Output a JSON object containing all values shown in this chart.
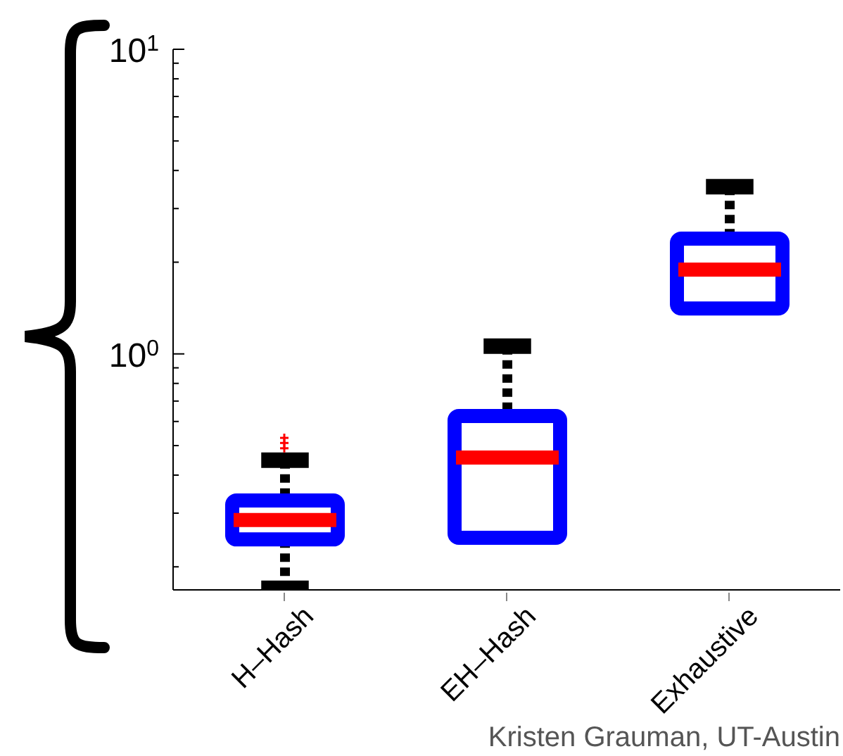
{
  "chart_data": {
    "type": "box",
    "categories": [
      "H–Hash",
      "EH–Hash",
      "Exhaustive"
    ],
    "color": "#0000ff",
    "boxes": [
      {
        "low": 0.17,
        "q1": 0.246,
        "median": 0.285,
        "q3": 0.33,
        "high": 0.448,
        "outliers": [
          0.49,
          0.51,
          0.53
        ]
      },
      {
        "low": 0.249,
        "q1": 0.249,
        "median": 0.457,
        "q3": 0.625,
        "high": 1.06
      },
      {
        "low": 1.41,
        "q1": 1.41,
        "median": 1.89,
        "q3": 2.39,
        "high": 3.54
      }
    ],
    "log": "y",
    "ylim": [
      0.168,
      10
    ],
    "yticks": [
      {
        "value": 0.2,
        "label": null
      },
      {
        "value": 0.3,
        "label": null
      },
      {
        "value": 0.4,
        "label": null
      },
      {
        "value": 0.5,
        "label": null
      },
      {
        "value": 0.6,
        "label": null
      },
      {
        "value": 0.7,
        "label": null
      },
      {
        "value": 0.8,
        "label": null
      },
      {
        "value": 0.9,
        "label": null
      },
      {
        "value": 1,
        "label": "10$^{0}$"
      },
      {
        "value": 2,
        "label": null
      },
      {
        "value": 3,
        "label": null
      },
      {
        "value": 4,
        "label": null
      },
      {
        "value": 5,
        "label": null
      },
      {
        "value": 6,
        "label": null
      },
      {
        "value": 7,
        "label": null
      },
      {
        "value": 8,
        "label": null
      },
      {
        "value": 9,
        "label": null
      },
      {
        "value": 10,
        "label": "10$^{1}$"
      }
    ],
    "grid": false,
    "legend": false,
    "annotations": [
      "Kristen Grauman, UT-Austin"
    ]
  }
}
